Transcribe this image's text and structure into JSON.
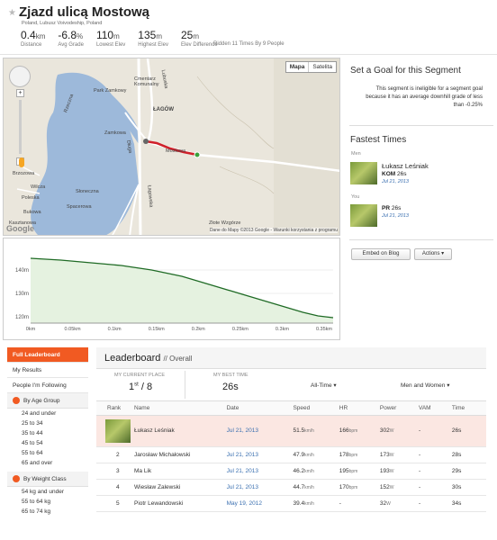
{
  "segment": {
    "title": "Zjazd ulicą Mostową",
    "location": "Poland, Lubusz Voivodeship, Poland",
    "stats": [
      {
        "value": "0.4",
        "unit": "km",
        "label": "Distance"
      },
      {
        "value": "-6.8",
        "unit": "%",
        "label": "Avg Grade"
      },
      {
        "value": "110",
        "unit": "m",
        "label": "Lowest Elev"
      },
      {
        "value": "135",
        "unit": "m",
        "label": "Highest Elev"
      },
      {
        "value": "25",
        "unit": "m",
        "label": "Elev Difference"
      }
    ],
    "ridden": "Ridden 11 Times By 9 People"
  },
  "map": {
    "type_buttons": [
      "Mapa",
      "Satelita"
    ],
    "labels": {
      "lagow": "ŁAGÓW",
      "zamkowa": "Zamkowa",
      "mostowa": "Mostowa",
      "cmentarz": "Cmentarz Komunalny",
      "park": "Park Zamkowy",
      "lubuska": "Lubuska",
      "dluga": "Długa",
      "rzecz": "Rzeczna",
      "wilc": "Wilcza",
      "pol": "Poleska",
      "bukow": "Bukowa",
      "brz": "Brzozowa",
      "kas": "Kasztanowa",
      "lagowska": "Łagowska",
      "zlote": "Złote Wzgórze",
      "slon": "Słoneczna",
      "spa": "Spacerowa"
    },
    "copyright": "Dane do Mapy ©2013 Google - Warunki korzystania z programu",
    "google": "Google"
  },
  "elevation": {
    "y_ticks": [
      "140m",
      "130m",
      "120m"
    ],
    "x_ticks": [
      "0km",
      "0.05km",
      "0.1km",
      "0.15km",
      "0.2km",
      "0.25km",
      "0.3km",
      "0.35km"
    ]
  },
  "goal": {
    "heading": "Set a Goal for this Segment",
    "text": "This segment is ineligible for a segment goal because it has an average downhill grade of less than -0.25%"
  },
  "fastest": {
    "heading": "Fastest Times",
    "men_label": "Men",
    "kom_name": "Łukasz Leśniak",
    "kom_badge": "KOM",
    "kom_time": "26s",
    "kom_date": "Jul 21, 2013",
    "you_label": "You",
    "pr_badge": "PR",
    "pr_time": "26s",
    "pr_date": "Jul 21, 2013"
  },
  "buttons": {
    "embed": "Embed on Blog",
    "actions": "Actions"
  },
  "nav": {
    "full": "Full Leaderboard",
    "my": "My Results",
    "following": "People I'm Following",
    "age": "By Age Group",
    "age_items": [
      "24 and under",
      "25 to 34",
      "35 to 44",
      "45 to 54",
      "55 to 64",
      "65 and over"
    ],
    "weight": "By Weight Class",
    "weight_items": [
      "54 kg and under",
      "55 to 64 kg",
      "65 to 74 kg"
    ]
  },
  "leaderboard": {
    "title": "Leaderboard",
    "subtitle": "// Overall",
    "place_label": "MY CURRENT PLACE",
    "place": "1",
    "place_sup": "st",
    "place_total": "/ 8",
    "best_label": "MY BEST TIME",
    "best": "26s",
    "filter_time": "All-Time",
    "filter_gender": "Men and Women",
    "columns": [
      "Rank",
      "Name",
      "Date",
      "Speed",
      "HR",
      "Power",
      "VAM",
      "Time"
    ],
    "rows": [
      {
        "rank": "",
        "name": "Łukasz Leśniak",
        "date": "Jul 21, 2013",
        "speed": "51.5",
        "speed_u": "km/h",
        "hr": "166",
        "hr_u": "bpm",
        "power": "302",
        "power_u": "W",
        "vam": "-",
        "time": "26s"
      },
      {
        "rank": "2",
        "name": "Jarosław Michałowski",
        "date": "Jul 21, 2013",
        "speed": "47.9",
        "speed_u": "km/h",
        "hr": "178",
        "hr_u": "bpm",
        "power": "173",
        "power_u": "W",
        "vam": "-",
        "time": "28s"
      },
      {
        "rank": "3",
        "name": "Ma Lik",
        "date": "Jul 21, 2013",
        "speed": "46.2",
        "speed_u": "km/h",
        "hr": "195",
        "hr_u": "bpm",
        "power": "193",
        "power_u": "W",
        "vam": "-",
        "time": "29s"
      },
      {
        "rank": "4",
        "name": "Wiesław Zalewski",
        "date": "Jul 21, 2013",
        "speed": "44.7",
        "speed_u": "km/h",
        "hr": "170",
        "hr_u": "bpm",
        "power": "152",
        "power_u": "W",
        "vam": "-",
        "time": "30s"
      },
      {
        "rank": "5",
        "name": "Piotr Lewandowski",
        "date": "May 19, 2012",
        "speed": "39.4",
        "speed_u": "km/h",
        "hr": "-",
        "hr_u": "",
        "power": "32",
        "power_u": "W",
        "vam": "-",
        "time": "34s"
      }
    ]
  },
  "colors": {
    "accent": "#f15a22",
    "link": "#3a6fb0",
    "route": "#d0202a",
    "profile_fill": "#e5f2e0",
    "profile_line": "#1f6b25"
  }
}
